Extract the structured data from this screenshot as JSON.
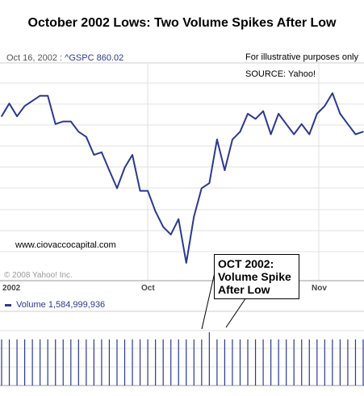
{
  "title": "October 2002 Lows:  Two Volume Spikes After Low",
  "quote": {
    "date": "Oct 16, 2002 :",
    "symbol": "^GSPC",
    "value": "860.02"
  },
  "notes": {
    "illustrative": "For illustrative purposes only",
    "source": "SOURCE: Yahoo!"
  },
  "watermark": "www.ciovaccocapital.com",
  "copyright": "© 2008 Yahoo! Inc.",
  "volume_legend": {
    "label": "Volume",
    "value": "1,584,999,936"
  },
  "callout": {
    "line1": "OCT 2002:",
    "line2": "Volume Spike",
    "line3": "After Low"
  },
  "colors": {
    "series": "#2b3990",
    "grid": "#e0e0e0"
  },
  "chart_data": [
    {
      "type": "line",
      "title": "",
      "xlabel": "",
      "ylabel": "",
      "x_ticks": [
        "2002",
        "Oct",
        "Nov"
      ],
      "grid": true,
      "series": [
        {
          "name": "^GSPC",
          "values": [
            875,
            900,
            875,
            895,
            905,
            915,
            915,
            860,
            865,
            865,
            845,
            835,
            800,
            805,
            770,
            735,
            775,
            800,
            730,
            730,
            690,
            660,
            645,
            675,
            590,
            680,
            735,
            745,
            830,
            770,
            830,
            845,
            880,
            870,
            885,
            840,
            880,
            860,
            840,
            860,
            840,
            880,
            895,
            920,
            880,
            860,
            840,
            845
          ]
        }
      ]
    },
    {
      "type": "bar",
      "title": "",
      "xlabel": "",
      "ylabel": "",
      "grid": true,
      "series": [
        {
          "name": "Volume",
          "values": [
            1.3,
            1.3,
            1.3,
            1.3,
            1.3,
            1.3,
            1.3,
            1.3,
            1.3,
            1.3,
            1.3,
            1.3,
            1.3,
            1.3,
            1.3,
            1.3,
            1.3,
            1.3,
            1.3,
            1.3,
            1.3,
            1.3,
            1.3,
            1.3,
            1.3,
            1.3,
            1.3,
            1.5,
            1.3,
            1.3,
            1.3,
            1.3,
            1.3,
            1.3,
            1.3,
            1.3,
            1.3,
            1.3,
            1.3,
            1.3,
            1.3,
            1.3,
            1.3,
            1.3,
            1.3,
            1.3,
            1.3,
            1.3
          ]
        }
      ]
    }
  ]
}
